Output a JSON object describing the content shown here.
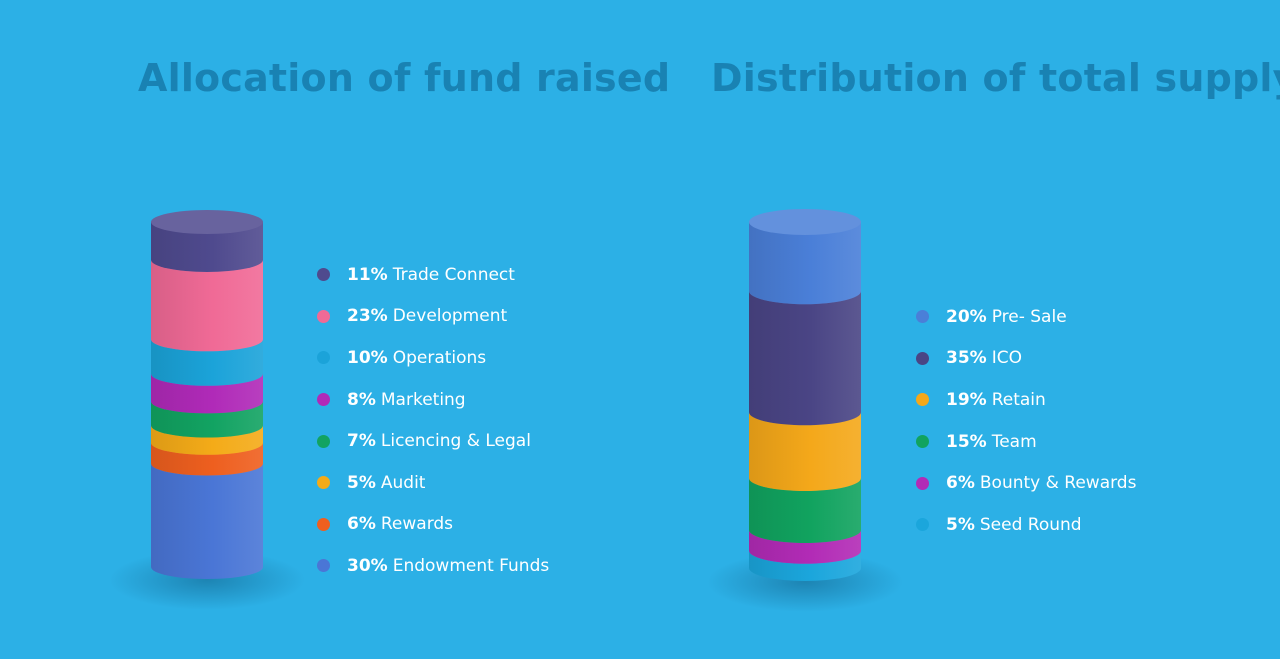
{
  "chart_data": [
    {
      "type": "stacked-cylinder",
      "title": "Allocation of fund raised",
      "legend_position": "right",
      "segments": [
        {
          "label": "Trade Connect",
          "value": 11,
          "pct_label": "11%",
          "color": "#4f4a8e"
        },
        {
          "label": "Development",
          "value": 23,
          "pct_label": "23%",
          "color": "#f06a96"
        },
        {
          "label": "Operations",
          "value": 10,
          "pct_label": "10%",
          "color": "#1ba3d9"
        },
        {
          "label": "Marketing",
          "value": 8,
          "pct_label": "8%",
          "color": "#b02ab8"
        },
        {
          "label": "Licencing & Legal",
          "value": 7,
          "pct_label": "7%",
          "color": "#12a362"
        },
        {
          "label": "Audit",
          "value": 5,
          "pct_label": "5%",
          "color": "#f4ab18"
        },
        {
          "label": "Rewards",
          "value": 6,
          "pct_label": "6%",
          "color": "#ee5f1f"
        },
        {
          "label": "Endowment Funds",
          "value": 30,
          "pct_label": "30%",
          "color": "#4a76d6"
        }
      ]
    },
    {
      "type": "stacked-cylinder",
      "title": "Distribution of total supply",
      "legend_position": "right",
      "segments": [
        {
          "label": "Pre- Sale",
          "value": 20,
          "pct_label": "20%",
          "color": "#4a7fd8"
        },
        {
          "label": "ICO",
          "value": 35,
          "pct_label": "35%",
          "color": "#4a4585"
        },
        {
          "label": "Retain",
          "value": 19,
          "pct_label": "19%",
          "color": "#f4a81a"
        },
        {
          "label": "Team",
          "value": 15,
          "pct_label": "15%",
          "color": "#11a35f"
        },
        {
          "label": "Bounty & Rewards",
          "value": 6,
          "pct_label": "6%",
          "color": "#b22bb6"
        },
        {
          "label": "Seed Round",
          "value": 5,
          "pct_label": "5%",
          "color": "#1ba6dc"
        }
      ]
    }
  ]
}
